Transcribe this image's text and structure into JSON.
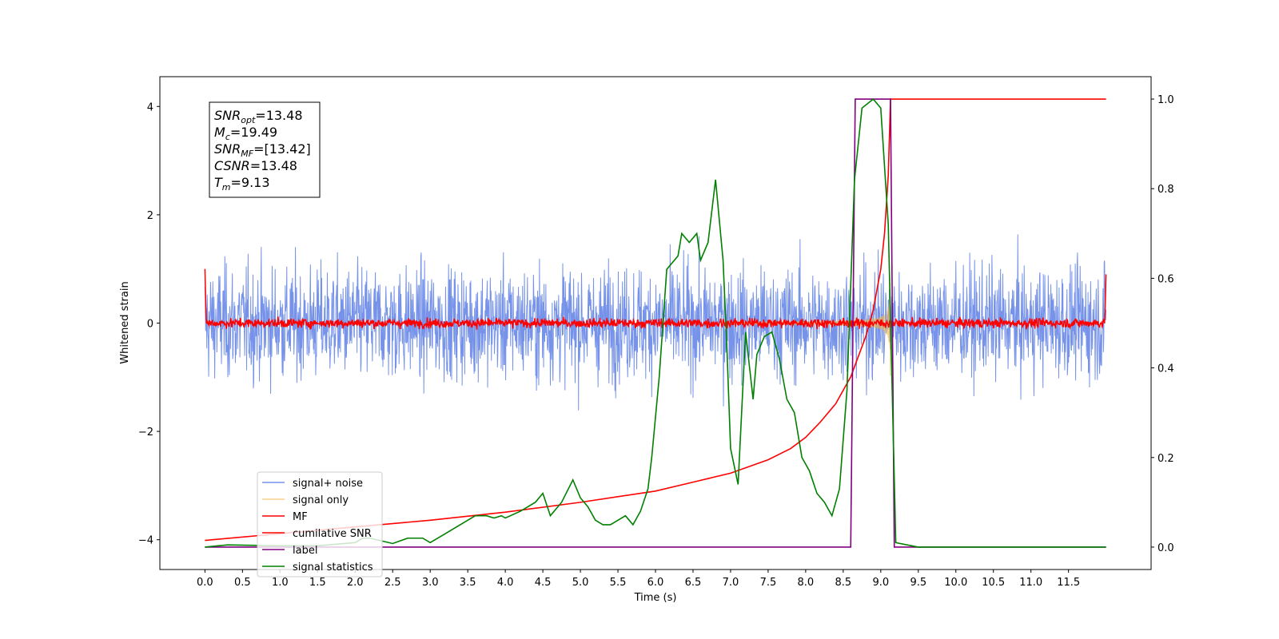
{
  "chart_data": {
    "type": "line",
    "xlabel": "Time (s)",
    "ylabel": "Whitened strain",
    "xlim": [
      -0.6,
      12.6
    ],
    "ylim_left": [
      -4.55,
      4.55
    ],
    "ylim_right": [
      -0.05,
      1.05
    ],
    "x_ticks": [
      "0.0",
      "0.5",
      "1.0",
      "1.5",
      "2.0",
      "2.5",
      "3.0",
      "3.5",
      "4.0",
      "4.5",
      "5.0",
      "5.5",
      "6.0",
      "6.5",
      "7.0",
      "7.5",
      "8.0",
      "8.5",
      "9.0",
      "9.5",
      "10.0",
      "10.5",
      "11.0",
      "11.5"
    ],
    "y_ticks_left": [
      "−4",
      "−2",
      "0",
      "2",
      "4"
    ],
    "y_ticks_right": [
      "0.0",
      "0.2",
      "0.4",
      "0.6",
      "0.8",
      "1.0"
    ],
    "grid": false,
    "legend_position": "lower-left",
    "annotation": {
      "lines": [
        {
          "main": "SNR",
          "sub": "opt",
          "rest": "=13.48"
        },
        {
          "main": "M",
          "sub": "c",
          "rest": "=19.49"
        },
        {
          "main": "SNR",
          "sub": "MF",
          "rest": "=[13.42]"
        },
        {
          "main": "CSNR",
          "sub": "",
          "rest": "=13.48"
        },
        {
          "main": "T",
          "sub": "m",
          "rest": "=9.13"
        }
      ]
    },
    "series": [
      {
        "name": "signal+ noise",
        "color": "#4169e1",
        "axis": "left",
        "style": "noise",
        "amplitude_std": 1.0,
        "x_range": [
          0,
          12
        ]
      },
      {
        "name": "signal only",
        "color": "#f5b041",
        "axis": "left",
        "style": "chirp",
        "merger_time": 9.13,
        "peak_amplitude": 1.0
      },
      {
        "name": "MF",
        "color": "#ff0000",
        "axis": "left",
        "style": "mf",
        "x_range": [
          0,
          12
        ]
      },
      {
        "name": "cumilative SNR",
        "color": "#ff0000",
        "axis": "right",
        "x": [
          0,
          1,
          2,
          3,
          4,
          5,
          6,
          6.5,
          7,
          7.5,
          7.8,
          8,
          8.2,
          8.4,
          8.6,
          8.8,
          8.9,
          9.0,
          9.05,
          9.1,
          9.13,
          9.2,
          12
        ],
        "y": [
          0.015,
          0.03,
          0.045,
          0.06,
          0.078,
          0.1,
          0.125,
          0.145,
          0.165,
          0.195,
          0.22,
          0.245,
          0.28,
          0.32,
          0.38,
          0.47,
          0.53,
          0.62,
          0.7,
          0.83,
          1.0,
          1.0,
          1.0
        ]
      },
      {
        "name": "label",
        "color": "#800080",
        "axis": "right",
        "x": [
          0,
          8.6,
          8.66,
          9.13,
          9.18,
          12
        ],
        "y": [
          0,
          0,
          1,
          1,
          0,
          0
        ]
      },
      {
        "name": "signal statistics",
        "color": "#008000",
        "axis": "right",
        "x": [
          0,
          0.3,
          1.0,
          1.5,
          2.0,
          2.1,
          2.2,
          2.5,
          2.7,
          2.9,
          3.0,
          3.2,
          3.4,
          3.6,
          3.75,
          3.85,
          3.95,
          4.0,
          4.2,
          4.4,
          4.5,
          4.6,
          4.75,
          4.9,
          5.0,
          5.1,
          5.2,
          5.3,
          5.4,
          5.5,
          5.6,
          5.7,
          5.8,
          5.9,
          5.95,
          6.05,
          6.15,
          6.3,
          6.35,
          6.45,
          6.55,
          6.6,
          6.7,
          6.8,
          6.9,
          6.95,
          7.0,
          7.1,
          7.2,
          7.3,
          7.35,
          7.45,
          7.55,
          7.65,
          7.75,
          7.85,
          7.95,
          8.05,
          8.15,
          8.25,
          8.35,
          8.45,
          8.55,
          8.65,
          8.75,
          8.9,
          9.0,
          9.1,
          9.2,
          9.5,
          12
        ],
        "y": [
          0,
          0.005,
          0.003,
          0.003,
          0.01,
          0.02,
          0.02,
          0.008,
          0.02,
          0.02,
          0.01,
          0.03,
          0.05,
          0.07,
          0.07,
          0.065,
          0.07,
          0.065,
          0.08,
          0.1,
          0.12,
          0.07,
          0.1,
          0.15,
          0.11,
          0.09,
          0.06,
          0.05,
          0.05,
          0.06,
          0.07,
          0.05,
          0.08,
          0.13,
          0.2,
          0.38,
          0.62,
          0.65,
          0.7,
          0.68,
          0.7,
          0.64,
          0.68,
          0.82,
          0.64,
          0.45,
          0.22,
          0.14,
          0.48,
          0.33,
          0.43,
          0.47,
          0.48,
          0.42,
          0.33,
          0.3,
          0.2,
          0.17,
          0.12,
          0.1,
          0.07,
          0.13,
          0.35,
          0.82,
          0.98,
          1.0,
          0.98,
          0.72,
          0.01,
          0.0,
          0.0
        ]
      }
    ]
  }
}
